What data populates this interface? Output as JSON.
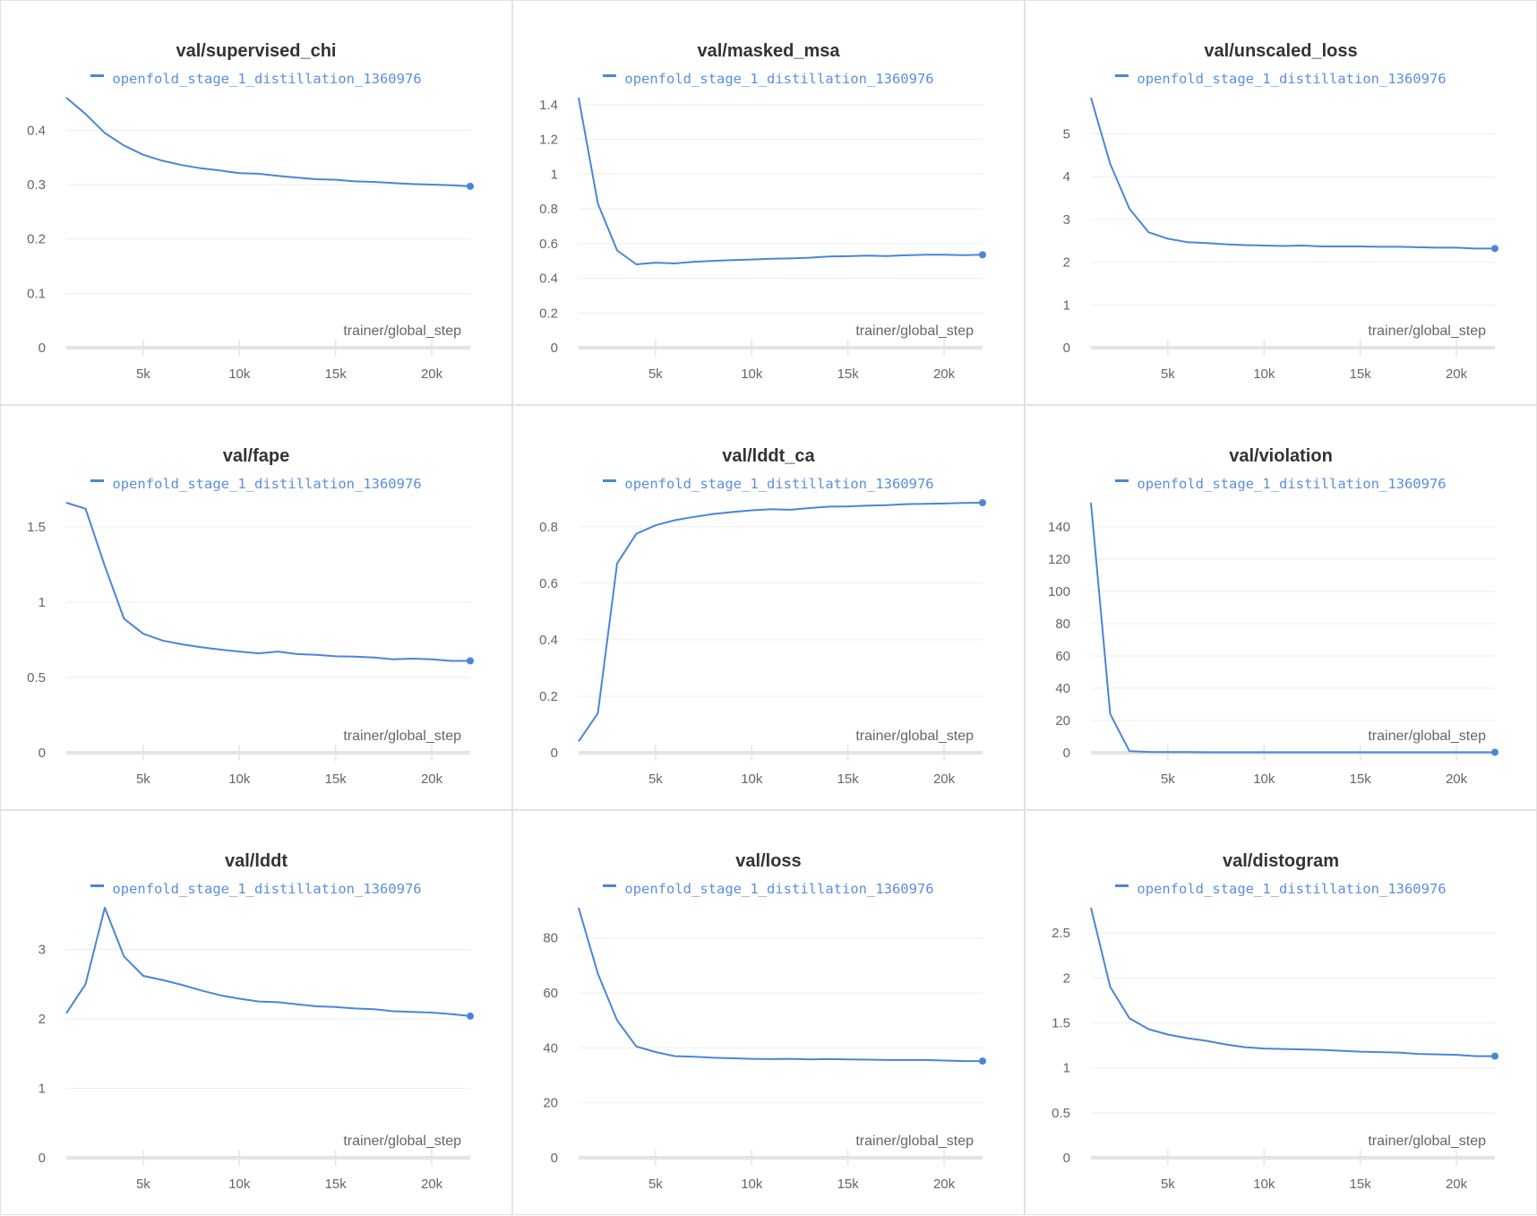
{
  "colors": {
    "series": "#4a86d6",
    "legend_text": "#5a8fdc",
    "grid": "#eeeeee",
    "axis": "#e4e4e4"
  },
  "chart_data": [
    {
      "type": "line",
      "title": "val/supervised_chi",
      "xlabel": "trainer/global_step",
      "legend": "top-center",
      "grid": true,
      "series": [
        {
          "name": "openfold_stage_1_distillation_1360976",
          "y": [
            0.46,
            0.43,
            0.395,
            0.372,
            0.355,
            0.344,
            0.336,
            0.33,
            0.326,
            0.321,
            0.32,
            0.316,
            0.313,
            0.31,
            0.309,
            0.306,
            0.305,
            0.303,
            0.301,
            0.3,
            0.299,
            0.297
          ]
        }
      ],
      "x": [
        1000,
        2000,
        3000,
        4000,
        5000,
        6000,
        7000,
        8000,
        9000,
        10000,
        11000,
        12000,
        13000,
        14000,
        15000,
        16000,
        17000,
        18000,
        19000,
        20000,
        21000,
        22000
      ],
      "xlim": [
        1000,
        22000
      ],
      "ylim": [
        0,
        0.46
      ],
      "yticks": [
        0,
        0.1,
        0.2,
        0.3,
        0.4
      ],
      "ytick_labels": [
        "0",
        "0.1",
        "0.2",
        "0.3",
        "0.4"
      ],
      "xticks": [
        5000,
        10000,
        15000,
        20000
      ],
      "xtick_labels": [
        "5k",
        "10k",
        "15k",
        "20k"
      ]
    },
    {
      "type": "line",
      "title": "val/masked_msa",
      "xlabel": "trainer/global_step",
      "legend": "top-center",
      "grid": true,
      "series": [
        {
          "name": "openfold_stage_1_distillation_1360976",
          "y": [
            1.44,
            0.83,
            0.56,
            0.48,
            0.49,
            0.485,
            0.495,
            0.5,
            0.505,
            0.508,
            0.512,
            0.514,
            0.518,
            0.525,
            0.527,
            0.53,
            0.528,
            0.532,
            0.535,
            0.535,
            0.533,
            0.535
          ]
        }
      ],
      "x": [
        1000,
        2000,
        3000,
        4000,
        5000,
        6000,
        7000,
        8000,
        9000,
        10000,
        11000,
        12000,
        13000,
        14000,
        15000,
        16000,
        17000,
        18000,
        19000,
        20000,
        21000,
        22000
      ],
      "xlim": [
        1000,
        22000
      ],
      "ylim": [
        0,
        1.44
      ],
      "yticks": [
        0,
        0.2,
        0.4,
        0.6,
        0.8,
        1,
        1.2,
        1.4
      ],
      "ytick_labels": [
        "0",
        "0.2",
        "0.4",
        "0.6",
        "0.8",
        "1",
        "1.2",
        "1.4"
      ],
      "xticks": [
        5000,
        10000,
        15000,
        20000
      ],
      "xtick_labels": [
        "5k",
        "10k",
        "15k",
        "20k"
      ]
    },
    {
      "type": "line",
      "title": "val/unscaled_loss",
      "xlabel": "trainer/global_step",
      "legend": "top-center",
      "grid": true,
      "series": [
        {
          "name": "openfold_stage_1_distillation_1360976",
          "y": [
            5.85,
            4.3,
            3.25,
            2.7,
            2.55,
            2.47,
            2.45,
            2.42,
            2.4,
            2.39,
            2.38,
            2.39,
            2.37,
            2.37,
            2.37,
            2.36,
            2.36,
            2.35,
            2.34,
            2.34,
            2.32,
            2.32
          ]
        }
      ],
      "x": [
        1000,
        2000,
        3000,
        4000,
        5000,
        6000,
        7000,
        8000,
        9000,
        10000,
        11000,
        12000,
        13000,
        14000,
        15000,
        16000,
        17000,
        18000,
        19000,
        20000,
        21000,
        22000
      ],
      "xlim": [
        1000,
        22000
      ],
      "ylim": [
        0,
        5.85
      ],
      "yticks": [
        0,
        1,
        2,
        3,
        4,
        5
      ],
      "ytick_labels": [
        "0",
        "1",
        "2",
        "3",
        "4",
        "5"
      ],
      "xticks": [
        5000,
        10000,
        15000,
        20000
      ],
      "xtick_labels": [
        "5k",
        "10k",
        "15k",
        "20k"
      ]
    },
    {
      "type": "line",
      "title": "val/fape",
      "xlabel": "trainer/global_step",
      "legend": "top-center",
      "grid": true,
      "series": [
        {
          "name": "openfold_stage_1_distillation_1360976",
          "y": [
            1.66,
            1.62,
            1.24,
            0.89,
            0.79,
            0.745,
            0.72,
            0.7,
            0.685,
            0.672,
            0.66,
            0.672,
            0.655,
            0.65,
            0.64,
            0.638,
            0.632,
            0.62,
            0.625,
            0.62,
            0.61,
            0.61
          ]
        }
      ],
      "x": [
        1000,
        2000,
        3000,
        4000,
        5000,
        6000,
        7000,
        8000,
        9000,
        10000,
        11000,
        12000,
        13000,
        14000,
        15000,
        16000,
        17000,
        18000,
        19000,
        20000,
        21000,
        22000
      ],
      "xlim": [
        1000,
        22000
      ],
      "ylim": [
        0,
        1.66
      ],
      "yticks": [
        0,
        0.5,
        1,
        1.5
      ],
      "ytick_labels": [
        "0",
        "0.5",
        "1",
        "1.5"
      ],
      "xticks": [
        5000,
        10000,
        15000,
        20000
      ],
      "xtick_labels": [
        "5k",
        "10k",
        "15k",
        "20k"
      ]
    },
    {
      "type": "line",
      "title": "val/lddt_ca",
      "xlabel": "trainer/global_step",
      "legend": "top-center",
      "grid": true,
      "series": [
        {
          "name": "openfold_stage_1_distillation_1360976",
          "y": [
            0.04,
            0.14,
            0.67,
            0.775,
            0.805,
            0.823,
            0.835,
            0.845,
            0.852,
            0.858,
            0.862,
            0.86,
            0.866,
            0.871,
            0.872,
            0.875,
            0.876,
            0.88,
            0.881,
            0.882,
            0.884,
            0.885
          ]
        }
      ],
      "x": [
        1000,
        2000,
        3000,
        4000,
        5000,
        6000,
        7000,
        8000,
        9000,
        10000,
        11000,
        12000,
        13000,
        14000,
        15000,
        16000,
        17000,
        18000,
        19000,
        20000,
        21000,
        22000
      ],
      "xlim": [
        1000,
        22000
      ],
      "ylim": [
        0,
        0.885
      ],
      "yticks": [
        0,
        0.2,
        0.4,
        0.6,
        0.8
      ],
      "ytick_labels": [
        "0",
        "0.2",
        "0.4",
        "0.6",
        "0.8"
      ],
      "xticks": [
        5000,
        10000,
        15000,
        20000
      ],
      "xtick_labels": [
        "5k",
        "10k",
        "15k",
        "20k"
      ]
    },
    {
      "type": "line",
      "title": "val/violation",
      "xlabel": "trainer/global_step",
      "legend": "top-center",
      "grid": true,
      "series": [
        {
          "name": "openfold_stage_1_distillation_1360976",
          "y": [
            155,
            24,
            1,
            0.5,
            0.4,
            0.4,
            0.3,
            0.3,
            0.3,
            0.3,
            0.3,
            0.3,
            0.3,
            0.3,
            0.3,
            0.3,
            0.3,
            0.3,
            0.3,
            0.3,
            0.3,
            0.3
          ]
        }
      ],
      "x": [
        1000,
        2000,
        3000,
        4000,
        5000,
        6000,
        7000,
        8000,
        9000,
        10000,
        11000,
        12000,
        13000,
        14000,
        15000,
        16000,
        17000,
        18000,
        19000,
        20000,
        21000,
        22000
      ],
      "xlim": [
        1000,
        22000
      ],
      "ylim": [
        0,
        155
      ],
      "yticks": [
        0,
        20,
        40,
        60,
        80,
        100,
        120,
        140
      ],
      "ytick_labels": [
        "0",
        "20",
        "40",
        "60",
        "80",
        "100",
        "120",
        "140"
      ],
      "xticks": [
        5000,
        10000,
        15000,
        20000
      ],
      "xtick_labels": [
        "5k",
        "10k",
        "15k",
        "20k"
      ]
    },
    {
      "type": "line",
      "title": "val/lddt",
      "xlabel": "trainer/global_step",
      "legend": "top-center",
      "grid": true,
      "series": [
        {
          "name": "openfold_stage_1_distillation_1360976",
          "y": [
            2.08,
            2.5,
            3.6,
            2.9,
            2.62,
            2.56,
            2.49,
            2.41,
            2.34,
            2.29,
            2.25,
            2.24,
            2.21,
            2.18,
            2.17,
            2.15,
            2.14,
            2.11,
            2.1,
            2.09,
            2.07,
            2.04
          ]
        }
      ],
      "x": [
        1000,
        2000,
        3000,
        4000,
        5000,
        6000,
        7000,
        8000,
        9000,
        10000,
        11000,
        12000,
        13000,
        14000,
        15000,
        16000,
        17000,
        18000,
        19000,
        20000,
        21000,
        22000
      ],
      "xlim": [
        1000,
        22000
      ],
      "ylim": [
        0,
        3.6
      ],
      "yticks": [
        0,
        1,
        2,
        3
      ],
      "ytick_labels": [
        "0",
        "1",
        "2",
        "3"
      ],
      "xticks": [
        5000,
        10000,
        15000,
        20000
      ],
      "xtick_labels": [
        "5k",
        "10k",
        "15k",
        "20k"
      ]
    },
    {
      "type": "line",
      "title": "val/loss",
      "xlabel": "trainer/global_step",
      "legend": "top-center",
      "grid": true,
      "series": [
        {
          "name": "openfold_stage_1_distillation_1360976",
          "y": [
            91,
            67,
            50,
            40.5,
            38.5,
            37,
            36.8,
            36.4,
            36.2,
            36,
            35.9,
            36,
            35.8,
            35.9,
            35.8,
            35.7,
            35.6,
            35.6,
            35.6,
            35.4,
            35.2,
            35.2
          ]
        }
      ],
      "x": [
        1000,
        2000,
        3000,
        4000,
        5000,
        6000,
        7000,
        8000,
        9000,
        10000,
        11000,
        12000,
        13000,
        14000,
        15000,
        16000,
        17000,
        18000,
        19000,
        20000,
        21000,
        22000
      ],
      "xlim": [
        1000,
        22000
      ],
      "ylim": [
        0,
        91
      ],
      "yticks": [
        0,
        20,
        40,
        60,
        80
      ],
      "ytick_labels": [
        "0",
        "20",
        "40",
        "60",
        "80"
      ],
      "xticks": [
        5000,
        10000,
        15000,
        20000
      ],
      "xtick_labels": [
        "5k",
        "10k",
        "15k",
        "20k"
      ]
    },
    {
      "type": "line",
      "title": "val/distogram",
      "xlabel": "trainer/global_step",
      "legend": "top-center",
      "grid": true,
      "series": [
        {
          "name": "openfold_stage_1_distillation_1360976",
          "y": [
            2.78,
            1.9,
            1.55,
            1.43,
            1.37,
            1.33,
            1.3,
            1.26,
            1.23,
            1.215,
            1.21,
            1.205,
            1.2,
            1.19,
            1.18,
            1.175,
            1.17,
            1.155,
            1.15,
            1.145,
            1.13,
            1.13
          ]
        }
      ],
      "x": [
        1000,
        2000,
        3000,
        4000,
        5000,
        6000,
        7000,
        8000,
        9000,
        10000,
        11000,
        12000,
        13000,
        14000,
        15000,
        16000,
        17000,
        18000,
        19000,
        20000,
        21000,
        22000
      ],
      "xlim": [
        1000,
        22000
      ],
      "ylim": [
        0,
        2.78
      ],
      "yticks": [
        0,
        0.5,
        1,
        1.5,
        2,
        2.5
      ],
      "ytick_labels": [
        "0",
        "0.5",
        "1",
        "1.5",
        "2",
        "2.5"
      ],
      "xticks": [
        5000,
        10000,
        15000,
        20000
      ],
      "xtick_labels": [
        "5k",
        "10k",
        "15k",
        "20k"
      ]
    }
  ]
}
